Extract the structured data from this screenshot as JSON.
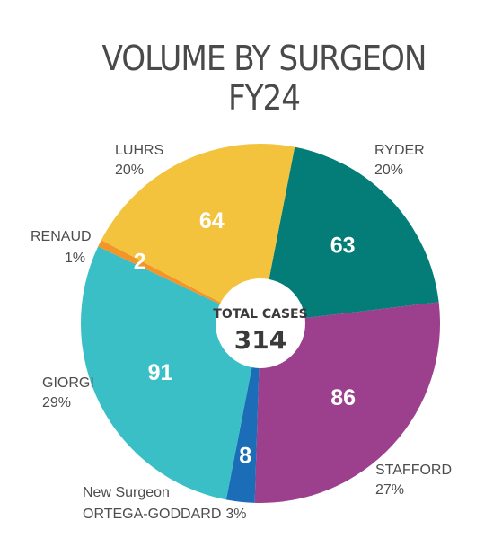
{
  "chart_data": {
    "type": "pie",
    "title": "VOLUME BY SURGEON",
    "subtitle": "FY24",
    "center": {
      "caption": "TOTAL CASES",
      "total": "314"
    },
    "slices": [
      {
        "name": "RYDER",
        "value": 63,
        "percent": "20%",
        "color": "#047d78"
      },
      {
        "name": "STAFFORD",
        "value": 86,
        "percent": "27%",
        "color": "#9c3f8d"
      },
      {
        "name": "ORTEGA-GODDARD",
        "prefix": "New Surgeon",
        "value": 8,
        "percent": "3%",
        "color": "#1b6db8"
      },
      {
        "name": "GIORGI",
        "value": 91,
        "percent": "29%",
        "color": "#3bbfc6"
      },
      {
        "name": "RENAUD",
        "value": 2,
        "percent": "1%",
        "color": "#f39527"
      },
      {
        "name": "LUHRS",
        "value": 64,
        "percent": "20%",
        "color": "#f3c33d"
      }
    ]
  }
}
